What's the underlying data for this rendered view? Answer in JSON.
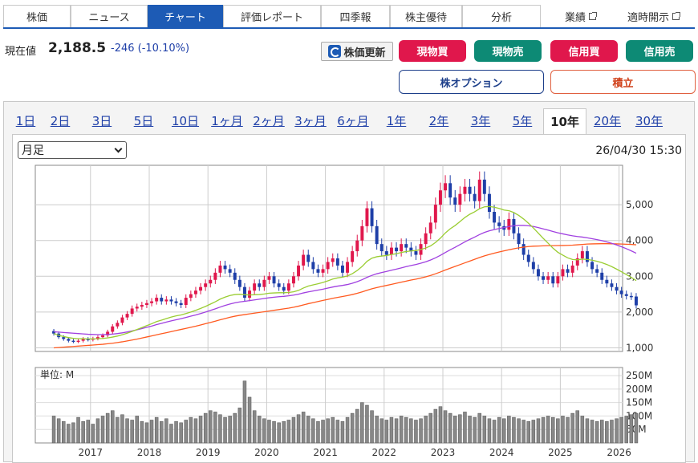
{
  "nav": {
    "tabs": [
      "株価",
      "ニュース",
      "チャート",
      "評価レポート",
      "四季報",
      "株主優待",
      "分析"
    ],
    "active": "チャート",
    "links": [
      "業績",
      "適時開示"
    ]
  },
  "price": {
    "label": "現在値",
    "value": "2,188.5",
    "change": "-246 (-10.10%)"
  },
  "buttons": {
    "refresh": "株価更新",
    "genbutsu_buy": "現物買",
    "genbutsu_sell": "現物売",
    "shinyo_buy": "信用買",
    "shinyo_sell": "信用売",
    "option": "株オプション",
    "tsumitate": "積立"
  },
  "periods": [
    "1日",
    "2日",
    "3日",
    "5日",
    "10日",
    "1ヶ月",
    "2ヶ月",
    "3ヶ月",
    "6ヶ月",
    "1年",
    "2年",
    "3年",
    "5年",
    "10年",
    "20年",
    "30年"
  ],
  "active_period": "10年",
  "chart_controls": {
    "interval": "月足",
    "timestamp": "26/04/30 15:30"
  },
  "colors": {
    "up": "#e0174c",
    "down": "#1e3fa8",
    "ma_short": "#9acd32",
    "ma_mid": "#a040e0",
    "ma_long": "#ff5a20",
    "volume": "#888888"
  },
  "chart_data": {
    "type": "candlestick",
    "interval": "monthly",
    "x_tick_labels": [
      "2017",
      "2018",
      "2019",
      "2020",
      "2021",
      "2022",
      "2023",
      "2024",
      "2025",
      "2026"
    ],
    "price_axis": {
      "ticks": [
        "1,000",
        "2,000",
        "3,000",
        "4,000",
        "5,000"
      ],
      "range": [
        900,
        6100
      ]
    },
    "volume_axis": {
      "unit_label": "単位: M",
      "ticks": [
        "50M",
        "100M",
        "150M",
        "200M",
        "250M"
      ],
      "range": [
        0,
        280
      ]
    },
    "close": [
      1400,
      1300,
      1250,
      1200,
      1180,
      1200,
      1250,
      1230,
      1260,
      1300,
      1350,
      1450,
      1600,
      1700,
      1850,
      1950,
      2100,
      2150,
      2200,
      2250,
      2300,
      2400,
      2300,
      2350,
      2300,
      2250,
      2200,
      2400,
      2500,
      2600,
      2700,
      2800,
      2900,
      3100,
      3300,
      3200,
      3100,
      2900,
      2700,
      2400,
      2600,
      2800,
      2700,
      2900,
      3000,
      2800,
      2700,
      2600,
      2800,
      3000,
      3300,
      3600,
      3400,
      3200,
      3100,
      3200,
      3400,
      3500,
      3300,
      3100,
      3400,
      3700,
      4000,
      4400,
      4900,
      4400,
      3900,
      3700,
      3600,
      3800,
      3700,
      3900,
      3800,
      3700,
      3600,
      3900,
      4200,
      4500,
      5000,
      5400,
      5600,
      5200,
      5000,
      5300,
      5500,
      5300,
      5100,
      5700,
      5300,
      4800,
      4500,
      4400,
      4300,
      4600,
      4200,
      3900,
      3600,
      3400,
      3200,
      3000,
      2900,
      3000,
      2800,
      3000,
      3200,
      3100,
      3300,
      3500,
      3700,
      3400,
      3200,
      3100,
      2900,
      2800,
      2700,
      2600,
      2500,
      2450,
      2434.5,
      2188.5
    ],
    "ma_short": [
      1400,
      1350,
      1317,
      1288,
      1266,
      1255,
      1254,
      1251,
      1252,
      1256,
      1264,
      1278,
      1302,
      1330,
      1368,
      1410,
      1461,
      1513,
      1567,
      1622,
      1675,
      1735,
      1775,
      1818,
      1860,
      1895,
      1920,
      1960,
      2002,
      2048,
      2102,
      2158,
      2222,
      2289,
      2362,
      2418,
      2463,
      2490,
      2498,
      2484,
      2478,
      2484,
      2490,
      2505,
      2528,
      2535,
      2540,
      2540,
      2548,
      2567,
      2605,
      2672,
      2727,
      2760,
      2790,
      2827,
      2873,
      2922,
      2955,
      2975,
      3010,
      3072,
      3162,
      3275,
      3418,
      3506,
      3546,
      3566,
      3580,
      3610,
      3630,
      3666,
      3692,
      3708,
      3720,
      3750,
      3790,
      3850,
      3945,
      4065,
      4210,
      4327,
      4418,
      4528,
      4642,
      4733,
      4802,
      4888,
      4940,
      4950,
      4928,
      4895,
      4850,
      4832,
      4780,
      4700,
      4600,
      4480,
      4350,
      4205,
      4060,
      3925,
      3785,
      3670,
      3590,
      3515,
      3470,
      3460,
      3480,
      3470,
      3450,
      3420,
      3380,
      3330,
      3270,
      3200,
      3125,
      3048,
      2970,
      2880
    ],
    "ma_mid": [
      1450,
      1440,
      1430,
      1420,
      1410,
      1400,
      1390,
      1380,
      1375,
      1370,
      1370,
      1375,
      1385,
      1400,
      1420,
      1445,
      1475,
      1505,
      1540,
      1575,
      1610,
      1650,
      1685,
      1720,
      1755,
      1785,
      1815,
      1850,
      1885,
      1920,
      1960,
      2000,
      2045,
      2090,
      2140,
      2185,
      2225,
      2260,
      2285,
      2300,
      2320,
      2340,
      2360,
      2380,
      2400,
      2415,
      2430,
      2440,
      2455,
      2475,
      2500,
      2535,
      2565,
      2590,
      2615,
      2640,
      2670,
      2700,
      2725,
      2745,
      2770,
      2805,
      2850,
      2905,
      2970,
      3025,
      3070,
      3105,
      3135,
      3170,
      3200,
      3235,
      3270,
      3300,
      3330,
      3365,
      3405,
      3455,
      3515,
      3585,
      3665,
      3740,
      3810,
      3885,
      3960,
      4030,
      4095,
      4165,
      4225,
      4270,
      4305,
      4335,
      4360,
      4390,
      4410,
      4420,
      4420,
      4410,
      4390,
      4360,
      4325,
      4290,
      4250,
      4215,
      4185,
      4155,
      4130,
      4110,
      4095,
      4075,
      4050,
      4025,
      3995,
      3960,
      3920,
      3875,
      3825,
      3770,
      3710,
      3645
    ],
    "ma_long": [
      1000,
      1010,
      1020,
      1030,
      1040,
      1050,
      1060,
      1070,
      1080,
      1090,
      1100,
      1115,
      1130,
      1150,
      1170,
      1195,
      1220,
      1245,
      1275,
      1305,
      1335,
      1365,
      1395,
      1425,
      1455,
      1485,
      1515,
      1545,
      1575,
      1605,
      1640,
      1675,
      1710,
      1745,
      1785,
      1820,
      1855,
      1885,
      1910,
      1930,
      1950,
      1970,
      1990,
      2010,
      2030,
      2050,
      2070,
      2090,
      2110,
      2135,
      2165,
      2200,
      2235,
      2265,
      2295,
      2325,
      2355,
      2385,
      2410,
      2435,
      2460,
      2490,
      2525,
      2565,
      2610,
      2650,
      2685,
      2715,
      2745,
      2775,
      2805,
      2835,
      2865,
      2895,
      2920,
      2950,
      2985,
      3025,
      3070,
      3120,
      3175,
      3225,
      3275,
      3325,
      3375,
      3425,
      3475,
      3525,
      3570,
      3610,
      3645,
      3680,
      3710,
      3740,
      3770,
      3795,
      3815,
      3830,
      3840,
      3845,
      3850,
      3855,
      3855,
      3858,
      3860,
      3865,
      3870,
      3880,
      3890,
      3900,
      3905,
      3908,
      3910,
      3910,
      3908,
      3905,
      3900,
      3895,
      3890,
      3880
    ],
    "volume": [
      100,
      90,
      80,
      70,
      75,
      95,
      80,
      85,
      70,
      90,
      100,
      110,
      120,
      95,
      105,
      90,
      85,
      100,
      80,
      75,
      85,
      95,
      80,
      90,
      70,
      80,
      75,
      85,
      95,
      90,
      100,
      110,
      120,
      115,
      105,
      95,
      100,
      110,
      130,
      230,
      170,
      120,
      100,
      90,
      85,
      80,
      75,
      80,
      85,
      95,
      105,
      115,
      100,
      90,
      80,
      85,
      90,
      95,
      85,
      80,
      95,
      110,
      125,
      150,
      140,
      120,
      100,
      90,
      85,
      95,
      90,
      100,
      95,
      90,
      85,
      90,
      100,
      110,
      125,
      135,
      120,
      110,
      100,
      105,
      115,
      100,
      95,
      110,
      100,
      90,
      85,
      95,
      90,
      100,
      95,
      90,
      85,
      80,
      85,
      90,
      95,
      100,
      95,
      90,
      100,
      95,
      110,
      120,
      100,
      90,
      85,
      80,
      85,
      80,
      85,
      90,
      95,
      100,
      105,
      110
    ]
  }
}
